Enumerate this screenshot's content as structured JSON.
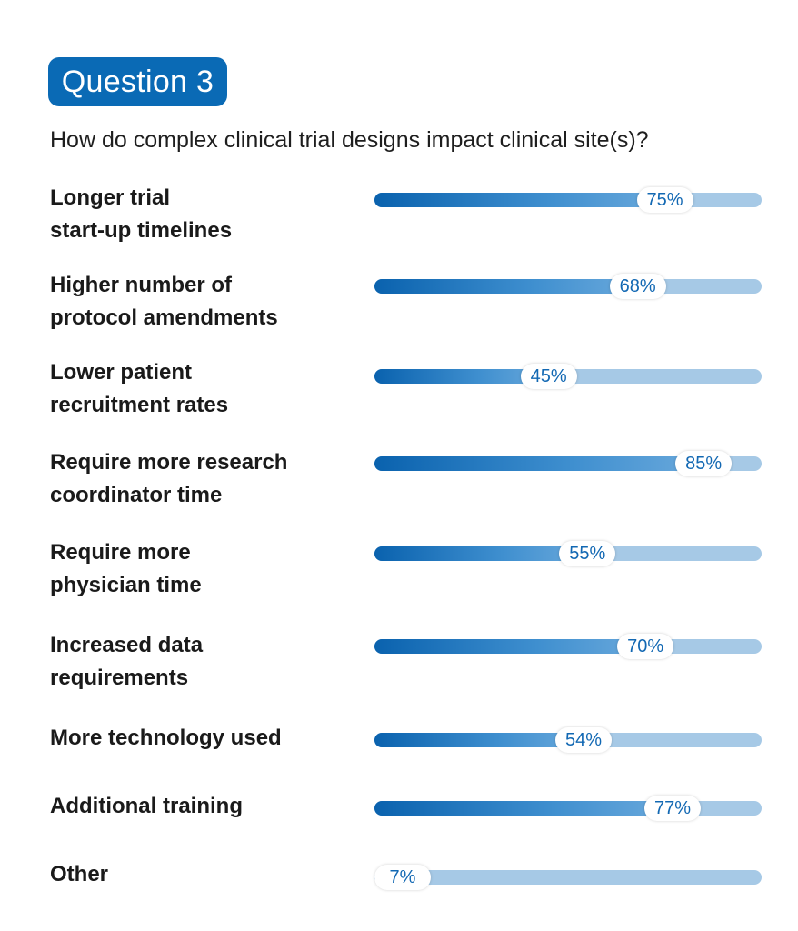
{
  "header": {
    "badge": "Question 3",
    "question": "How do complex clinical trial designs impact clinical site(s)?"
  },
  "colors": {
    "badge_bg": "#0a6ab5",
    "bar_dark": "#0a62ae",
    "bar_light": "#a6c9e6",
    "value_text": "#1268b3"
  },
  "chart_data": {
    "type": "bar",
    "orientation": "horizontal",
    "title": "How do complex clinical trial designs impact clinical site(s)?",
    "unit": "%",
    "xlim": [
      0,
      100
    ],
    "grid": false,
    "categories": [
      [
        "Longer trial",
        "start-up timelines"
      ],
      [
        "Higher number of",
        "protocol amendments"
      ],
      [
        "Lower patient",
        "recruitment rates"
      ],
      [
        "Require more research",
        "coordinator time"
      ],
      [
        "Require more",
        "physician time"
      ],
      [
        "Increased data",
        "requirements"
      ],
      [
        "More technology used"
      ],
      [
        "Additional training"
      ],
      [
        "Other"
      ]
    ],
    "values": [
      75,
      68,
      45,
      85,
      55,
      70,
      54,
      77,
      7
    ],
    "value_labels": [
      "75%",
      "68%",
      "45%",
      "85%",
      "55%",
      "70%",
      "54%",
      "77%",
      "7%"
    ]
  }
}
